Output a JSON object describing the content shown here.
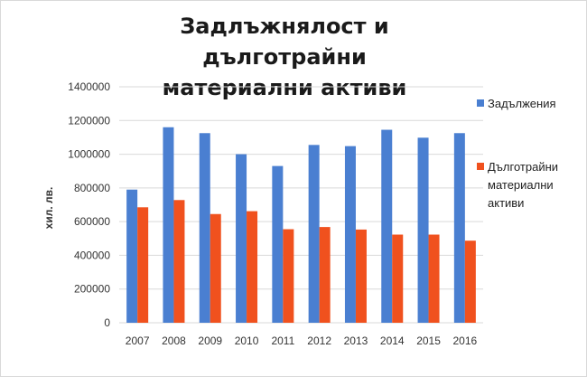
{
  "chart_data": {
    "type": "bar",
    "title_lines": [
      "Задлъжнялост  и дълготрайни",
      "материални  активи"
    ],
    "xlabel": "",
    "ylabel": "хил. лв.",
    "categories": [
      "2007",
      "2008",
      "2009",
      "2010",
      "2011",
      "2012",
      "2013",
      "2014",
      "2015",
      "2016"
    ],
    "series": [
      {
        "name": "Задължения",
        "color": "#4a7fd1",
        "values": [
          790000,
          1160000,
          1125000,
          1000000,
          930000,
          1055000,
          1048000,
          1145000,
          1098000,
          1125000
        ]
      },
      {
        "name": "Дълготрайни материални активи",
        "name_lines": [
          "Дълготрайни",
          "материални",
          "активи"
        ],
        "color": "#f0511e",
        "values": [
          685000,
          728000,
          645000,
          662000,
          555000,
          568000,
          553000,
          523000,
          523000,
          487000
        ]
      }
    ],
    "ylim": [
      0,
      1400000
    ],
    "yticks": [
      "0",
      "200000",
      "400000",
      "600000",
      "800000",
      "1000000",
      "1200000",
      "1400000"
    ],
    "grid": true,
    "legend": "right"
  }
}
